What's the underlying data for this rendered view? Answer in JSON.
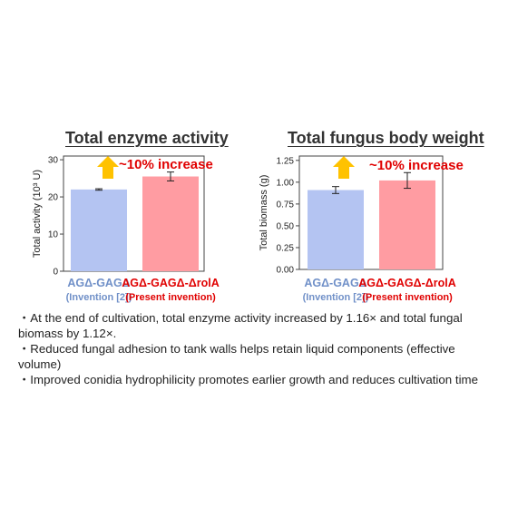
{
  "colors": {
    "bar_a": "#b4c4f2",
    "bar_b": "#ff9ca2",
    "label_a": "#7090c8",
    "label_b": "#e00000",
    "arrow": "#ffc200",
    "axis": "#444444"
  },
  "chart_data": [
    {
      "type": "bar",
      "title": "Total enzyme activity",
      "ylabel": "Total activity (10³ U)",
      "ylim": [
        0,
        31
      ],
      "yticks": [
        "0",
        "10",
        "20",
        "30"
      ],
      "categories": [
        "AGΔ-GAGΔ",
        "AGΔ-GAGΔ-ΔrolA"
      ],
      "sublabels": [
        "(Invention [2])",
        "(Present invention)"
      ],
      "values": [
        22,
        25.5
      ],
      "errors": [
        0.2,
        1.2
      ],
      "annotation": "~10% increase"
    },
    {
      "type": "bar",
      "title": "Total fungus body weight",
      "ylabel": "Total biomass (g)",
      "ylim": [
        0,
        1.3
      ],
      "yticks": [
        "0.00",
        "0.25",
        "0.50",
        "0.75",
        "1.00",
        "1.25"
      ],
      "categories": [
        "AGΔ-GAGΔ",
        "AGΔ-GAGΔ-ΔrolA"
      ],
      "sublabels": [
        "(Invention [2])",
        "(Present invention)"
      ],
      "values": [
        0.91,
        1.02
      ],
      "errors": [
        0.04,
        0.09
      ],
      "annotation": "~10% increase"
    }
  ],
  "notes": [
    "・At the end of cultivation, total enzyme activity increased by 1.16× and total fungal biomass by 1.12×.",
    "・Reduced fungal adhesion to tank walls helps retain liquid components (effective volume)",
    "・Improved conidia hydrophilicity promotes earlier growth and reduces cultivation time"
  ]
}
